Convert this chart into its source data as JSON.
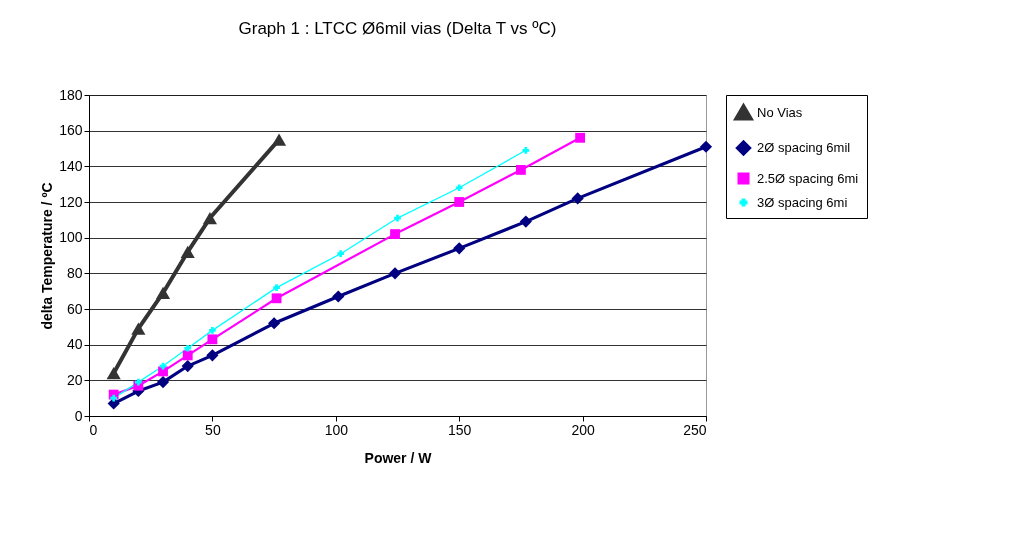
{
  "chart_data": {
    "type": "line",
    "title": "Graph 1 :  LTCC Ø6mil vias (Delta T  vs ºC)",
    "xlabel": "Power / W",
    "ylabel": "delta Temperature / ºC",
    "xlim": [
      0,
      250
    ],
    "xticks": [
      0,
      50,
      100,
      150,
      200,
      250
    ],
    "ylim": [
      0,
      180
    ],
    "yticks": [
      0,
      20,
      40,
      60,
      80,
      100,
      120,
      140,
      160,
      180
    ],
    "grid": "y",
    "legend": "right",
    "series": [
      {
        "name": "No Vias",
        "color": "#333333",
        "marker": "triangle",
        "x": [
          10,
          20,
          30,
          40,
          49,
          77
        ],
        "values": [
          24,
          49,
          69,
          92,
          111,
          155
        ]
      },
      {
        "name": "2Ø spacing 6mil",
        "color": "#000080",
        "marker": "diamond",
        "x": [
          10,
          20,
          30,
          40,
          50,
          75,
          101,
          124,
          150,
          177,
          198,
          250
        ],
        "values": [
          7,
          14,
          19,
          28,
          34,
          52,
          67,
          80,
          94,
          109,
          122,
          151
        ]
      },
      {
        "name": "2.5Ø spacing 6mi",
        "color": "#ff00ff",
        "marker": "square",
        "x": [
          10,
          20,
          30,
          40,
          50,
          76,
          124,
          150,
          175,
          199
        ],
        "values": [
          12,
          17,
          25,
          34,
          43,
          66,
          102,
          120,
          138,
          156
        ]
      },
      {
        "name": "3Ø spacing 6mi",
        "color": "#00ffff",
        "marker": "cross",
        "x": [
          10,
          20,
          30,
          40,
          50,
          76,
          102,
          125,
          150,
          177
        ],
        "values": [
          10,
          19,
          28,
          38,
          48,
          72,
          91,
          111,
          128,
          149
        ]
      }
    ]
  }
}
